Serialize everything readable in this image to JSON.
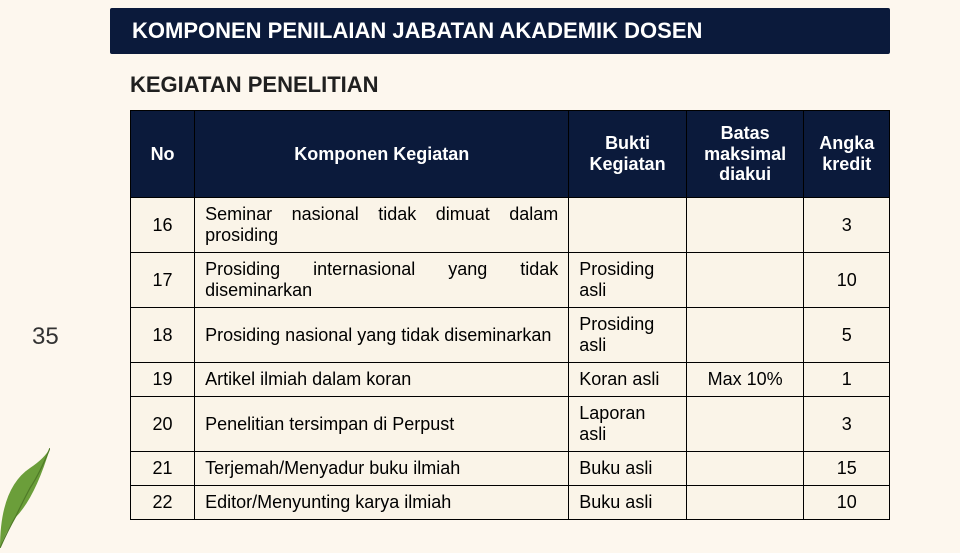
{
  "title": "KOMPONEN PENILAIAN JABATAN AKADEMIK DOSEN",
  "subtitle": "KEGIATAN PENELITIAN",
  "page_number": "35",
  "columns": {
    "no": "No",
    "komponen": "Komponen Kegiatan",
    "bukti": "Bukti Kegiatan",
    "batas": "Batas maksimal diakui",
    "kredit": "Angka kredit"
  },
  "rows": [
    {
      "no": "16",
      "komponen": "Seminar nasional tidak dimuat dalam prosiding",
      "bukti": "",
      "batas": "",
      "kredit": "3"
    },
    {
      "no": "17",
      "komponen": "Prosiding internasional yang tidak diseminarkan",
      "bukti": "Prosiding asli",
      "batas": "",
      "kredit": "10"
    },
    {
      "no": "18",
      "komponen": "Prosiding nasional yang tidak diseminarkan",
      "bukti": "Prosiding asli",
      "batas": "",
      "kredit": "5"
    },
    {
      "no": "19",
      "komponen": "Artikel ilmiah dalam koran",
      "bukti": "Koran asli",
      "batas": "Max 10%",
      "kredit": "1"
    },
    {
      "no": "20",
      "komponen": "Penelitian tersimpan di Perpust",
      "bukti": "Laporan asli",
      "batas": "",
      "kredit": "3"
    },
    {
      "no": "21",
      "komponen": "Terjemah/Menyadur buku ilmiah",
      "bukti": "Buku asli",
      "batas": "",
      "kredit": "15"
    },
    {
      "no": "22",
      "komponen": "Editor/Menyunting karya ilmiah",
      "bukti": "Buku asli",
      "batas": "",
      "kredit": "10"
    }
  ],
  "colors": {
    "background": "#FDF7EE",
    "header_bg": "#0B1A3B",
    "header_text": "#FFFFFF",
    "cell_bg": "#FAF4E8",
    "leaf": "#6B9E3A"
  }
}
